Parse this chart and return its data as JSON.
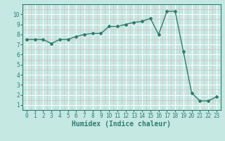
{
  "x": [
    0,
    1,
    2,
    3,
    4,
    5,
    6,
    7,
    8,
    9,
    10,
    11,
    12,
    13,
    14,
    15,
    16,
    17,
    18,
    19,
    20,
    21,
    22,
    23
  ],
  "y": [
    7.5,
    7.5,
    7.5,
    7.1,
    7.5,
    7.5,
    7.8,
    8.0,
    8.1,
    8.1,
    8.8,
    8.8,
    9.0,
    9.2,
    9.3,
    9.6,
    8.0,
    10.3,
    10.3,
    6.3,
    2.2,
    1.4,
    1.4,
    1.8
  ],
  "line_color": "#2e7d6e",
  "marker": "D",
  "marker_size": 2.0,
  "line_width": 1.0,
  "xlabel": "Humidex (Indice chaleur)",
  "xlim": [
    -0.5,
    23.5
  ],
  "ylim": [
    0.5,
    11.0
  ],
  "yticks": [
    1,
    2,
    3,
    4,
    5,
    6,
    7,
    8,
    9,
    10
  ],
  "xticks": [
    0,
    1,
    2,
    3,
    4,
    5,
    6,
    7,
    8,
    9,
    10,
    11,
    12,
    13,
    14,
    15,
    16,
    17,
    18,
    19,
    20,
    21,
    22,
    23
  ],
  "bg_color": "#c5e8e3",
  "grid_color_major": "#ffffff",
  "grid_color_minor": "#ddbcbc",
  "tick_label_fontsize": 5.5,
  "xlabel_fontsize": 7.0
}
